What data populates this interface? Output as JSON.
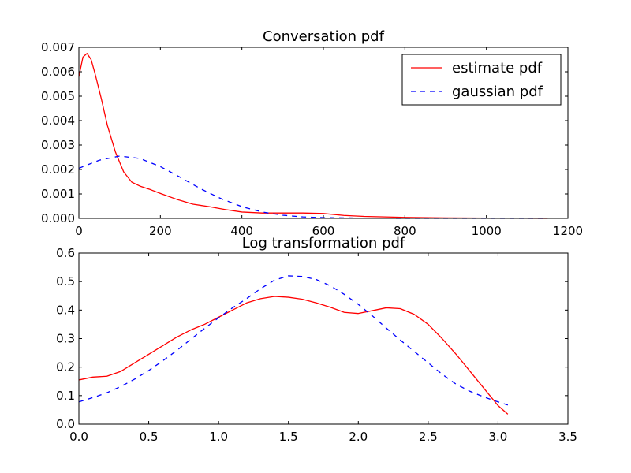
{
  "chart_data": [
    {
      "type": "line",
      "title": "Conversation pdf",
      "xlabel": "",
      "ylabel": "",
      "xlim": [
        0,
        1200
      ],
      "ylim": [
        0,
        0.007
      ],
      "xticks": [
        0,
        200,
        400,
        600,
        800,
        1000,
        1200
      ],
      "yticks": [
        0.0,
        0.001,
        0.002,
        0.003,
        0.004,
        0.005,
        0.006,
        0.007
      ],
      "xtick_labels": [
        "0",
        "200",
        "400",
        "600",
        "800",
        "1000",
        "1200"
      ],
      "ytick_labels": [
        "0.000",
        "0.001",
        "0.002",
        "0.003",
        "0.004",
        "0.005",
        "0.006",
        "0.007"
      ],
      "grid": false,
      "legend": {
        "position": "top-right",
        "entries": [
          "estimate pdf",
          "gaussian pdf"
        ]
      },
      "series": [
        {
          "name": "estimate pdf",
          "color": "#ff0000",
          "dash": "solid",
          "x": [
            0,
            10,
            20,
            30,
            40,
            55,
            70,
            90,
            110,
            130,
            150,
            175,
            200,
            240,
            280,
            320,
            360,
            400,
            450,
            500,
            550,
            600,
            650,
            700,
            800,
            900,
            1000,
            1150
          ],
          "y": [
            0.0058,
            0.0066,
            0.00675,
            0.0065,
            0.0059,
            0.0049,
            0.0038,
            0.0027,
            0.0019,
            0.00148,
            0.00132,
            0.00118,
            0.00102,
            0.00078,
            0.00058,
            0.00048,
            0.00036,
            0.00026,
            0.00022,
            0.00022,
            0.00022,
            0.0002,
            0.00012,
            8e-05,
            4e-05,
            2e-05,
            1e-05,
            0.0
          ]
        },
        {
          "name": "gaussian pdf",
          "color": "#0000ff",
          "dash": "dashed",
          "x": [
            0,
            50,
            100,
            150,
            200,
            250,
            300,
            350,
            400,
            450,
            500,
            550,
            600,
            700,
            800,
            900,
            1000,
            1150
          ],
          "y": [
            0.00205,
            0.00238,
            0.00255,
            0.00245,
            0.00212,
            0.00167,
            0.0012,
            0.0008,
            0.00048,
            0.00026,
            0.00013,
            6e-05,
            3e-05,
            1e-05,
            0.0,
            0.0,
            0.0,
            0.0
          ]
        }
      ]
    },
    {
      "type": "line",
      "title": "Log transformation pdf",
      "xlabel": "",
      "ylabel": "",
      "xlim": [
        0,
        3.5
      ],
      "ylim": [
        0,
        0.6
      ],
      "xticks": [
        0.0,
        0.5,
        1.0,
        1.5,
        2.0,
        2.5,
        3.0,
        3.5
      ],
      "yticks": [
        0.0,
        0.1,
        0.2,
        0.3,
        0.4,
        0.5,
        0.6
      ],
      "xtick_labels": [
        "0.0",
        "0.5",
        "1.0",
        "1.5",
        "2.0",
        "2.5",
        "3.0",
        "3.5"
      ],
      "ytick_labels": [
        "0.0",
        "0.1",
        "0.2",
        "0.3",
        "0.4",
        "0.5",
        "0.6"
      ],
      "grid": false,
      "series": [
        {
          "name": "estimate pdf",
          "color": "#ff0000",
          "dash": "solid",
          "x": [
            0.0,
            0.1,
            0.2,
            0.3,
            0.4,
            0.5,
            0.6,
            0.7,
            0.8,
            0.9,
            1.0,
            1.1,
            1.2,
            1.3,
            1.4,
            1.5,
            1.6,
            1.7,
            1.8,
            1.9,
            2.0,
            2.1,
            2.2,
            2.3,
            2.4,
            2.5,
            2.6,
            2.7,
            2.8,
            2.9,
            3.0,
            3.07
          ],
          "y": [
            0.155,
            0.165,
            0.168,
            0.185,
            0.215,
            0.245,
            0.275,
            0.305,
            0.33,
            0.35,
            0.375,
            0.4,
            0.425,
            0.44,
            0.448,
            0.445,
            0.438,
            0.425,
            0.41,
            0.392,
            0.388,
            0.398,
            0.408,
            0.405,
            0.385,
            0.35,
            0.3,
            0.245,
            0.185,
            0.125,
            0.065,
            0.035
          ]
        },
        {
          "name": "gaussian pdf",
          "color": "#0000ff",
          "dash": "dashed",
          "x": [
            0.0,
            0.1,
            0.2,
            0.3,
            0.4,
            0.5,
            0.6,
            0.7,
            0.8,
            0.9,
            1.0,
            1.1,
            1.2,
            1.3,
            1.4,
            1.5,
            1.6,
            1.7,
            1.8,
            1.9,
            2.0,
            2.1,
            2.2,
            2.3,
            2.4,
            2.5,
            2.6,
            2.7,
            2.8,
            2.9,
            3.0,
            3.07
          ],
          "y": [
            0.078,
            0.093,
            0.11,
            0.132,
            0.158,
            0.188,
            0.222,
            0.258,
            0.297,
            0.336,
            0.373,
            0.408,
            0.44,
            0.475,
            0.505,
            0.52,
            0.518,
            0.507,
            0.485,
            0.455,
            0.42,
            0.38,
            0.337,
            0.295,
            0.255,
            0.215,
            0.175,
            0.14,
            0.115,
            0.095,
            0.078,
            0.067
          ]
        }
      ]
    }
  ]
}
